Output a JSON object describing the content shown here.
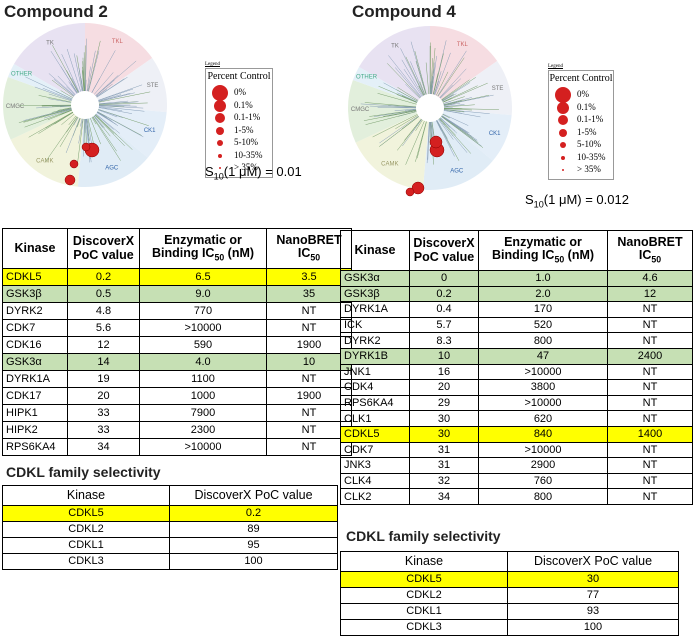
{
  "panels": [
    {
      "title": "Compound 2",
      "tree_groups": [
        "TK",
        "TKL",
        "STE",
        "CK1",
        "AGC",
        "CAMK",
        "CMGC",
        "OTHER"
      ],
      "legend": {
        "caption": "Legend",
        "title": "Percent Control",
        "items": [
          "0%",
          "0.1%",
          "0.1-1%",
          "1-5%",
          "5-10%",
          "10-35%",
          "> 35%"
        ]
      },
      "s10": {
        "symbol": "S",
        "sub": "10",
        "text": "(1 μM) = 0.01"
      },
      "table": {
        "headers": [
          {
            "text": "Kinase"
          },
          {
            "text": "DiscoverX PoC value"
          },
          {
            "text": "Enzymatic or Binding IC",
            "sub": "50",
            "after": " (nM)"
          },
          {
            "text": "NanoBRET IC",
            "sub": "50"
          }
        ],
        "rows": [
          {
            "cells": [
              "CDKL5",
              "0.2",
              "6.5",
              "3.5"
            ],
            "color": "#ffff00"
          },
          {
            "cells": [
              "GSK3β",
              "0.5",
              "9.0",
              "35"
            ],
            "color": "#c6e0b4"
          },
          {
            "cells": [
              "DYRK2",
              "4.8",
              "770",
              "NT"
            ]
          },
          {
            "cells": [
              "CDK7",
              "5.6",
              ">10000",
              "NT"
            ]
          },
          {
            "cells": [
              "CDK16",
              "12",
              "590",
              "1900"
            ]
          },
          {
            "cells": [
              "GSK3α",
              "14",
              "4.0",
              "10"
            ],
            "color": "#c6e0b4"
          },
          {
            "cells": [
              "DYRK1A",
              "19",
              "1100",
              "NT"
            ]
          },
          {
            "cells": [
              "CDK17",
              "20",
              "1000",
              "1900"
            ]
          },
          {
            "cells": [
              "HIPK1",
              "33",
              "7900",
              "NT"
            ]
          },
          {
            "cells": [
              "HIPK2",
              "33",
              "2300",
              "NT"
            ]
          },
          {
            "cells": [
              "RPS6KA4",
              "34",
              ">10000",
              "NT"
            ]
          }
        ]
      },
      "family": {
        "title": "CDKL family selectivity",
        "headers": [
          "Kinase",
          "DiscoverX PoC value"
        ],
        "rows": [
          {
            "cells": [
              "CDKL5",
              "0.2"
            ],
            "color": "#ffff00"
          },
          {
            "cells": [
              "CDKL2",
              "89"
            ]
          },
          {
            "cells": [
              "CDKL1",
              "95"
            ]
          },
          {
            "cells": [
              "CDKL3",
              "100"
            ]
          }
        ]
      }
    },
    {
      "title": "Compound 4",
      "tree_groups": [
        "TK",
        "TKL",
        "STE",
        "CK1",
        "AGC",
        "CAMK",
        "CMGC",
        "OTHER"
      ],
      "legend": {
        "caption": "Legend",
        "title": "Percent Control",
        "items": [
          "0%",
          "0.1%",
          "0.1-1%",
          "1-5%",
          "5-10%",
          "10-35%",
          "> 35%"
        ]
      },
      "s10": {
        "symbol": "S",
        "sub": "10",
        "text": "(1 μM) = 0.012"
      },
      "table": {
        "headers": [
          {
            "text": "Kinase"
          },
          {
            "text": "DiscoverX PoC value"
          },
          {
            "text": "Enzymatic or Binding IC",
            "sub": "50",
            "after": " (nM)"
          },
          {
            "text": "NanoBRET IC",
            "sub": "50"
          }
        ],
        "rows": [
          {
            "cells": [
              "GSK3α",
              "0",
              "1.0",
              "4.6"
            ],
            "color": "#c6e0b4"
          },
          {
            "cells": [
              "GSK3β",
              "0.2",
              "2.0",
              "12"
            ],
            "color": "#c6e0b4"
          },
          {
            "cells": [
              "DYRK1A",
              "0.4",
              "170",
              "NT"
            ]
          },
          {
            "cells": [
              "ICK",
              "5.7",
              "520",
              "NT"
            ]
          },
          {
            "cells": [
              "DYRK2",
              "8.3",
              "800",
              "NT"
            ]
          },
          {
            "cells": [
              "DYRK1B",
              "10",
              "47",
              "2400"
            ],
            "color": "#c6e0b4"
          },
          {
            "cells": [
              "JNK1",
              "16",
              ">10000",
              "NT"
            ]
          },
          {
            "cells": [
              "CDK4",
              "20",
              "3800",
              "NT"
            ]
          },
          {
            "cells": [
              "RPS6KA4",
              "29",
              ">10000",
              "NT"
            ]
          },
          {
            "cells": [
              "CLK1",
              "30",
              "620",
              "NT"
            ]
          },
          {
            "cells": [
              "CDKL5",
              "30",
              "840",
              "1400"
            ],
            "color": "#ffff00"
          },
          {
            "cells": [
              "CDK7",
              "31",
              ">10000",
              "NT"
            ]
          },
          {
            "cells": [
              "JNK3",
              "31",
              "2900",
              "NT"
            ]
          },
          {
            "cells": [
              "CLK4",
              "32",
              "760",
              "NT"
            ]
          },
          {
            "cells": [
              "CLK2",
              "34",
              "800",
              "NT"
            ]
          }
        ]
      },
      "family": {
        "title": "CDKL family selectivity",
        "headers": [
          "Kinase",
          "DiscoverX PoC value"
        ],
        "rows": [
          {
            "cells": [
              "CDKL5",
              "30"
            ],
            "color": "#ffff00"
          },
          {
            "cells": [
              "CDKL2",
              "77"
            ]
          },
          {
            "cells": [
              "CDKL1",
              "93"
            ]
          },
          {
            "cells": [
              "CDKL3",
              "100"
            ]
          }
        ]
      }
    }
  ]
}
